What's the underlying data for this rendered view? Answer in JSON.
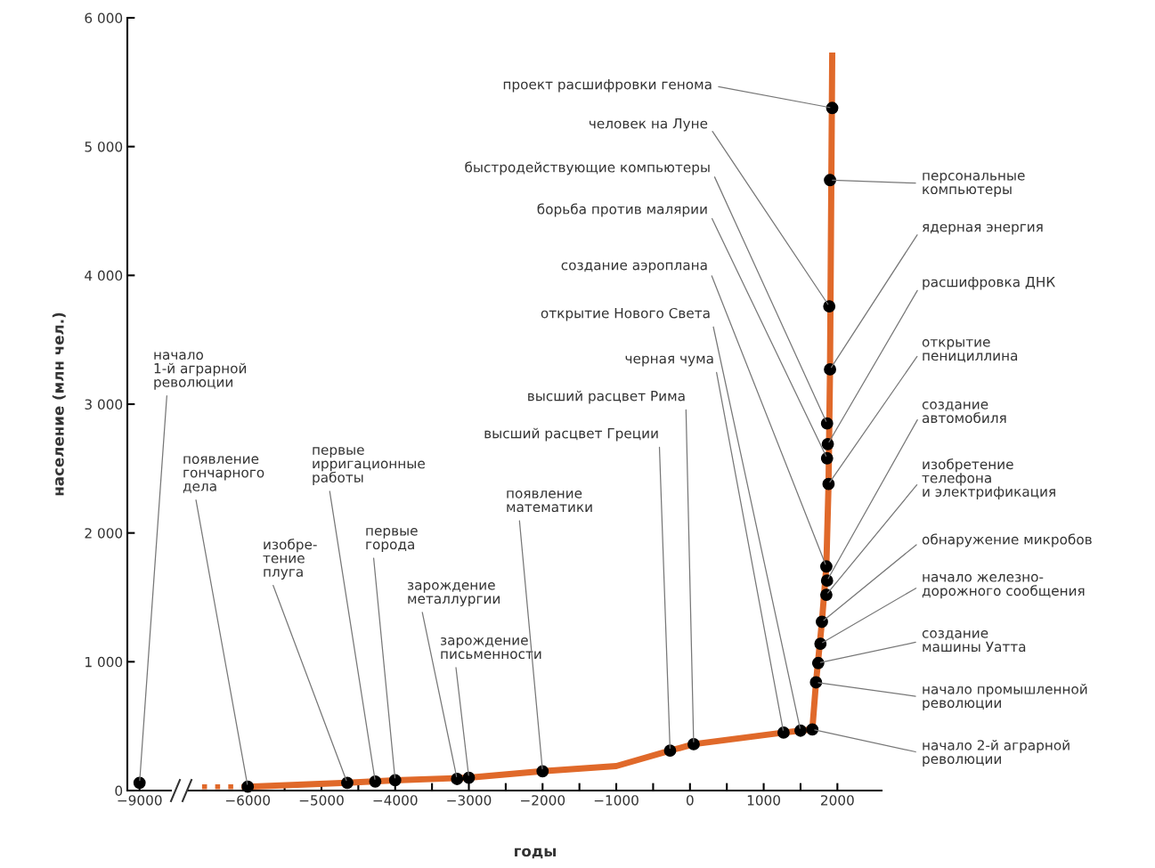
{
  "chart_data": [
    {
      "type": "scatter",
      "ylabel": "население (млн чел.)",
      "categories": [
        "−9000"
      ],
      "series": [
        {
          "color": "#000000",
          "marker": "circle",
          "values": [
            60
          ]
        }
      ],
      "ylim": [
        0,
        6000
      ],
      "yticks": [
        0,
        {
          "value": 1000,
          "label": "1 000"
        },
        {
          "value": 2000,
          "label": "2 000"
        },
        {
          "value": 3000,
          "label": "3 000"
        },
        {
          "value": 4000,
          "label": "4 000"
        },
        {
          "value": 5000,
          "label": "5 000"
        },
        {
          "value": 6000,
          "label": "6 000"
        }
      ],
      "annotations": [
        {
          "text": "начало\n1-й аграрной\nреволюции",
          "x": "−9000",
          "y": 60
        }
      ]
    },
    {
      "type": "line",
      "xlabel": "годы",
      "tick_labels": "x",
      "series": [
        {
          "color": "#e0692a",
          "line_style": "dotted",
          "x": [
            -6620,
            -6000
          ],
          "values": [
            30,
            30
          ]
        },
        {
          "color": "#e0692a",
          "line_style": "solid",
          "x": [
            -6000,
            -4650,
            -4000,
            -3000,
            -2000,
            -1000,
            -270,
            50,
            1270,
            1660,
            1710,
            1790,
            1850,
            1880,
            1900,
            1930
          ],
          "values": [
            30,
            60,
            80,
            100,
            150,
            190,
            310,
            360,
            450,
            475,
            840,
            1310,
            1740,
            2380,
            3270,
            5730
          ]
        },
        {
          "type": "scatter",
          "color": "#000000",
          "marker": "circle",
          "x": [
            -6000,
            -4650,
            -4270,
            -4000,
            -3160,
            -3000,
            -2000,
            -270,
            50,
            1270,
            1500,
            1660,
            1710,
            1740,
            1770,
            1790,
            1850,
            1860,
            1850,
            1880,
            1860,
            1870,
            1860,
            1900,
            1890,
            1900,
            1930
          ],
          "values": [
            30,
            60,
            70,
            80,
            90,
            100,
            150,
            310,
            360,
            450,
            465,
            475,
            840,
            990,
            1140,
            1310,
            1520,
            1630,
            1740,
            2380,
            2580,
            2690,
            2850,
            3270,
            3760,
            4740,
            5300
          ]
        }
      ],
      "xlim": [
        -6800,
        2600
      ],
      "xticks": [
        {
          "value": -6000,
          "label": "−6000"
        },
        {
          "value": -5500,
          "label": null
        },
        {
          "value": -5000,
          "label": "−5000"
        },
        {
          "value": -4500,
          "label": null
        },
        {
          "value": -4000,
          "label": "−4000"
        },
        {
          "value": -3500,
          "label": null
        },
        {
          "value": -3000,
          "label": "−3000"
        },
        {
          "value": -2500,
          "label": null
        },
        {
          "value": -2000,
          "label": "−2000"
        },
        {
          "value": -1500,
          "label": null
        },
        {
          "value": -1000,
          "label": "−1000"
        },
        {
          "value": -500,
          "label": null
        },
        0,
        {
          "value": 500,
          "label": null
        },
        1000,
        {
          "value": 1500,
          "label": null
        },
        2000
      ],
      "ylim": [
        0,
        6000
      ],
      "annotations": [
        {
          "text": "появление\nгончарного\nдела",
          "x": -6000,
          "y": 30
        },
        {
          "text": "изобре-\nтение\nплуга",
          "x": -4650,
          "y": 60
        },
        {
          "text": "первые\nирригационные\nработы",
          "x": -4270,
          "y": 70
        },
        {
          "text": "первые\nгорода",
          "x": -4000,
          "y": 80
        },
        {
          "text": "зарождение\nметаллургии",
          "x": -3160,
          "y": 90
        },
        {
          "text": "зарождение\nписьменности",
          "x": -3000,
          "y": 100
        },
        {
          "text": "появление\nматематики",
          "x": -2000,
          "y": 150
        },
        {
          "text": "высший расцвет Греции",
          "x": -270,
          "y": 310
        },
        {
          "text": "высший расцвет Рима",
          "x": 50,
          "y": 360
        },
        {
          "text": "черная чума",
          "x": 1270,
          "y": 450
        },
        {
          "text": "открытие Нового Света",
          "x": 1500,
          "y": 465
        },
        {
          "text": "начало 2-й аграрной\nреволюции",
          "x": 1660,
          "y": 475
        },
        {
          "text": "начало промышленной\nреволюции",
          "x": 1710,
          "y": 840
        },
        {
          "text": "создание\nмашины Уатта",
          "x": 1740,
          "y": 990
        },
        {
          "text": "начало железно-\nдорожного сообщения",
          "x": 1770,
          "y": 1140
        },
        {
          "text": "обнаружение микробов",
          "x": 1790,
          "y": 1310
        },
        {
          "text": "изобретение\nтелефона\nи электрификация",
          "x": 1850,
          "y": 1520
        },
        {
          "text": "создание\nавтомобиля",
          "x": 1860,
          "y": 1630
        },
        {
          "text": "создание аэроплана",
          "x": 1850,
          "y": 1740
        },
        {
          "text": "открытие\nпенициллина",
          "x": 1880,
          "y": 2380
        },
        {
          "text": "борьба против малярии",
          "x": 1860,
          "y": 2580
        },
        {
          "text": "расшифровка ДНК",
          "x": 1870,
          "y": 2690
        },
        {
          "text": "быстродействующие компьютеры",
          "x": 1860,
          "y": 2850
        },
        {
          "text": "ядерная энергия",
          "x": 1900,
          "y": 3270
        },
        {
          "text": "человек на Луне",
          "x": 1890,
          "y": 3760
        },
        {
          "text": "персональные\nкомпьютеры",
          "x": 1900,
          "y": 4740
        },
        {
          "text": "проект расшифровки генома",
          "x": 1930,
          "y": 5300
        }
      ]
    }
  ]
}
